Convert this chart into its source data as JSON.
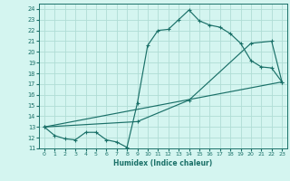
{
  "xlabel": "Humidex (Indice chaleur)",
  "bg_color": "#d4f5f0",
  "grid_color": "#b0ddd5",
  "line_color": "#1a7068",
  "xlim": [
    -0.5,
    23.5
  ],
  "ylim": [
    11,
    24.5
  ],
  "yticks": [
    11,
    12,
    13,
    14,
    15,
    16,
    17,
    18,
    19,
    20,
    21,
    22,
    23,
    24
  ],
  "xticks": [
    0,
    1,
    2,
    3,
    4,
    5,
    6,
    7,
    8,
    9,
    10,
    11,
    12,
    13,
    14,
    15,
    16,
    17,
    18,
    19,
    20,
    21,
    22,
    23
  ],
  "curve1_x": [
    0,
    1,
    2,
    3,
    4,
    5,
    6,
    7,
    8,
    9,
    10,
    11,
    12,
    13,
    14,
    15,
    16,
    17,
    18,
    19,
    20,
    21,
    22,
    23
  ],
  "curve1_y": [
    13.0,
    12.2,
    11.9,
    11.8,
    12.5,
    12.5,
    11.8,
    11.6,
    11.1,
    15.2,
    20.6,
    22.0,
    22.1,
    23.0,
    23.9,
    22.9,
    22.5,
    22.3,
    21.7,
    20.8,
    19.2,
    18.6,
    18.5,
    17.2
  ],
  "curve2_x": [
    0,
    9,
    14,
    20,
    22,
    23
  ],
  "curve2_y": [
    13.0,
    13.5,
    15.5,
    20.8,
    21.0,
    17.2
  ],
  "curve3_x": [
    0,
    23
  ],
  "curve3_y": [
    13.0,
    17.2
  ]
}
